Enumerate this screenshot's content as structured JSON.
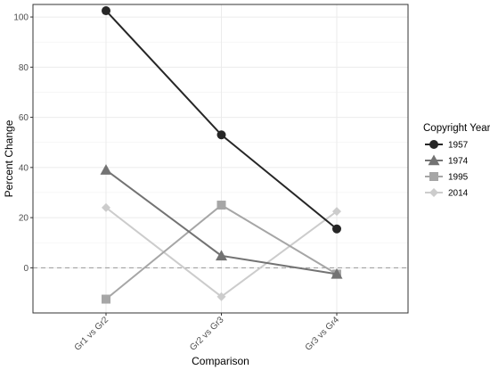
{
  "chart_data": {
    "type": "line",
    "title": "",
    "xlabel": "Comparison",
    "ylabel": "Percent Change",
    "categories": [
      "Gr1 vs Gr2",
      "Gr2 vs Gr3",
      "Gr3 vs Gr4"
    ],
    "ylim": [
      -18,
      105
    ],
    "yticks": [
      0,
      20,
      40,
      60,
      80,
      100
    ],
    "grid": true,
    "reference_line": {
      "y": 0,
      "style": "dashed"
    },
    "legend": {
      "title": "Copyright Year",
      "position": "right"
    },
    "series": [
      {
        "name": "1957",
        "values": [
          102.5,
          53,
          15.5
        ],
        "color": "#262626",
        "marker": "circle"
      },
      {
        "name": "1974",
        "values": [
          39,
          4.8,
          -2.5
        ],
        "color": "#737373",
        "marker": "triangle"
      },
      {
        "name": "1995",
        "values": [
          -12.5,
          25,
          -2.5
        ],
        "color": "#a6a6a6",
        "marker": "square"
      },
      {
        "name": "2014",
        "values": [
          24,
          -11.5,
          22.5
        ],
        "color": "#cccccc",
        "marker": "diamond"
      }
    ]
  }
}
